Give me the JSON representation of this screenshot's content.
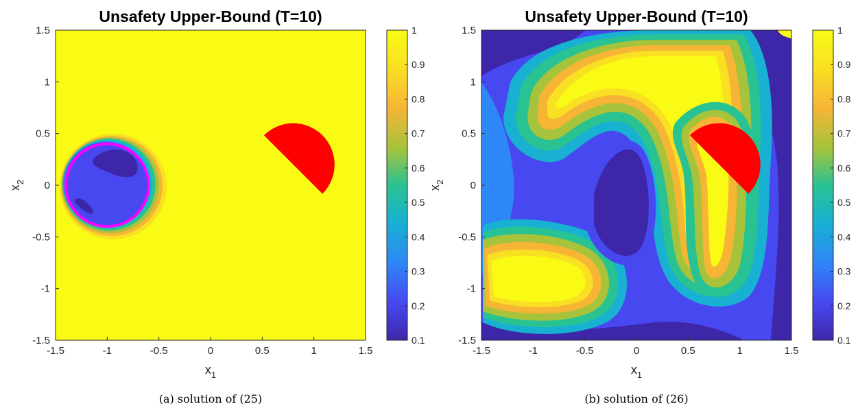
{
  "chart_data": [
    {
      "type": "heatmap",
      "title": "Unsafety Upper-Bound (T=10)",
      "xlabel": "x",
      "xlabel_sub": "1",
      "ylabel": "x",
      "ylabel_sub": "2",
      "xlim": [
        -1.5,
        1.5
      ],
      "ylim": [
        -1.5,
        1.5
      ],
      "x_ticks": [
        "-1.5",
        "-1",
        "-0.5",
        "0",
        "0.5",
        "1",
        "1.5"
      ],
      "y_ticks": [
        "-1.5",
        "-1",
        "-0.5",
        "0",
        "0.5",
        "1",
        "1.5"
      ],
      "colorbar": {
        "min": 0.1,
        "max": 1,
        "ticks": [
          "0.1",
          "0.2",
          "0.3",
          "0.4",
          "0.5",
          "0.6",
          "0.7",
          "0.8",
          "0.9",
          "1"
        ]
      },
      "colormap": [
        "#3e26a8",
        "#4748f0",
        "#2e87f7",
        "#18b1d2",
        "#29c292",
        "#a6c33b",
        "#f7b536",
        "#f9e022",
        "#f9fb15"
      ],
      "background_value": 1,
      "initial_set": {
        "shape": "circle",
        "center": [
          -1.0,
          0.0
        ],
        "radius": 0.4,
        "color": "#ff00ff"
      },
      "unsafe_set": {
        "shape": "half-disk",
        "center": [
          0.8,
          0.2
        ],
        "radius": 0.4,
        "color": "#ff0000"
      },
      "caption": "(a) solution of (25)"
    },
    {
      "type": "heatmap",
      "title": "Unsafety Upper-Bound (T=10)",
      "xlabel": "x",
      "xlabel_sub": "1",
      "ylabel": "x",
      "ylabel_sub": "2",
      "xlim": [
        -1.5,
        1.5
      ],
      "ylim": [
        -1.5,
        1.5
      ],
      "x_ticks": [
        "-1.5",
        "-1",
        "-0.5",
        "0",
        "0.5",
        "1",
        "1.5"
      ],
      "y_ticks": [
        "-1.5",
        "-1",
        "-0.5",
        "0",
        "0.5",
        "1",
        "1.5"
      ],
      "colorbar": {
        "min": 0.1,
        "max": 1,
        "ticks": [
          "0.1",
          "0.2",
          "0.3",
          "0.4",
          "0.5",
          "0.6",
          "0.7",
          "0.8",
          "0.9",
          "1"
        ]
      },
      "colormap": [
        "#3e26a8",
        "#4748f0",
        "#2e87f7",
        "#18b1d2",
        "#29c292",
        "#a6c33b",
        "#f7b536",
        "#f9e022",
        "#f9fb15"
      ],
      "background_value": 0.2,
      "unsafe_set": {
        "shape": "half-disk",
        "center": [
          0.8,
          0.2
        ],
        "radius": 0.4,
        "color": "#ff0000"
      },
      "caption": "(b) solution of (26)"
    }
  ]
}
